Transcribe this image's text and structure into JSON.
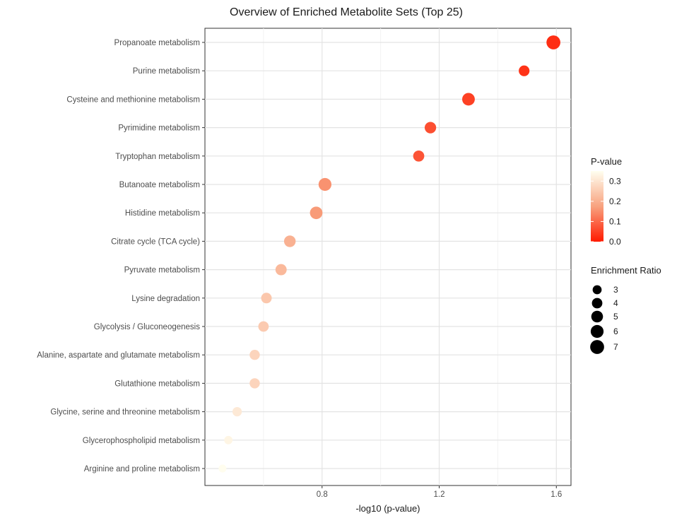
{
  "chart_data": {
    "type": "scatter",
    "title": "Overview of Enriched Metabolite Sets (Top 25)",
    "xlabel": "-log10 (p-value)",
    "ylabel": "",
    "xlim": [
      0.4,
      1.65
    ],
    "xticks": [
      0.8,
      1.2,
      1.6
    ],
    "xtick_labels": [
      "0.8",
      "1.2",
      "1.6"
    ],
    "grid": true,
    "legend_position": "right",
    "points": [
      {
        "name": "Propanoate metabolism",
        "x": 1.59,
        "p": 0.026,
        "ratio": 7.0
      },
      {
        "name": "Purine metabolism",
        "x": 1.49,
        "p": 0.032,
        "ratio": 4.2
      },
      {
        "name": "Cysteine and methionine metabolism",
        "x": 1.3,
        "p": 0.05,
        "ratio": 5.8
      },
      {
        "name": "Pyrimidine metabolism",
        "x": 1.17,
        "p": 0.068,
        "ratio": 4.8
      },
      {
        "name": "Tryptophan metabolism",
        "x": 1.13,
        "p": 0.074,
        "ratio": 4.5
      },
      {
        "name": "Butanoate metabolism",
        "x": 0.81,
        "p": 0.155,
        "ratio": 6.0
      },
      {
        "name": "Histidine metabolism",
        "x": 0.78,
        "p": 0.166,
        "ratio": 5.7
      },
      {
        "name": "Citrate cycle (TCA cycle)",
        "x": 0.69,
        "p": 0.204,
        "ratio": 4.9
      },
      {
        "name": "Pyruvate metabolism",
        "x": 0.66,
        "p": 0.219,
        "ratio": 4.6
      },
      {
        "name": "Lysine degradation",
        "x": 0.61,
        "p": 0.245,
        "ratio": 4.1
      },
      {
        "name": "Glycolysis / Gluconeogenesis",
        "x": 0.6,
        "p": 0.251,
        "ratio": 4.0
      },
      {
        "name": "Alanine, aspartate and glutamate metabolism",
        "x": 0.57,
        "p": 0.269,
        "ratio": 3.8
      },
      {
        "name": "Glutathione metabolism",
        "x": 0.57,
        "p": 0.269,
        "ratio": 3.8
      },
      {
        "name": "Glycine, serine and threonine metabolism",
        "x": 0.51,
        "p": 0.309,
        "ratio": 3.2
      },
      {
        "name": "Glycerophospholipid metabolism",
        "x": 0.48,
        "p": 0.331,
        "ratio": 2.6
      },
      {
        "name": "Arginine and proline metabolism",
        "x": 0.46,
        "p": 0.347,
        "ratio": 2.3
      }
    ],
    "legend_pvalue": {
      "title": "P-value",
      "ticks": [
        0.3,
        0.2,
        0.1,
        0.0
      ],
      "tick_labels": [
        "0.3",
        "0.2",
        "0.1",
        "0.0"
      ],
      "range": [
        0.0,
        0.35
      ],
      "color_low": "#ff1a00",
      "color_mid": "#f8a27f",
      "color_high": "#fffff0"
    },
    "legend_size": {
      "title": "Enrichment Ratio",
      "values": [
        3,
        4,
        5,
        6,
        7
      ],
      "labels": [
        "3",
        "4",
        "5",
        "6",
        "7"
      ]
    }
  }
}
